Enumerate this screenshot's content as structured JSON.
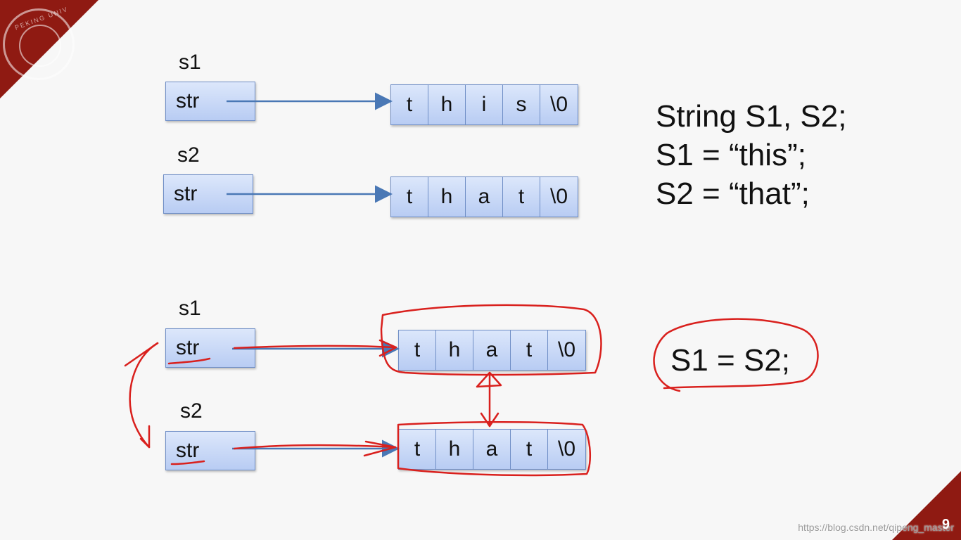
{
  "slide": {
    "page_number": "9",
    "watermark": "https://blog.csdn.net/qipeng_master"
  },
  "top": {
    "s1": {
      "label": "s1",
      "field": "str",
      "chars": [
        "t",
        "h",
        "i",
        "s",
        "\\0"
      ]
    },
    "s2": {
      "label": "s2",
      "field": "str",
      "chars": [
        "t",
        "h",
        "a",
        "t",
        "\\0"
      ]
    }
  },
  "bottom": {
    "s1": {
      "label": "s1",
      "field": "str",
      "chars": [
        "t",
        "h",
        "a",
        "t",
        "\\0"
      ]
    },
    "s2": {
      "label": "s2",
      "field": "str",
      "chars": [
        "t",
        "h",
        "a",
        "t",
        "\\0"
      ]
    }
  },
  "code": {
    "line1": "String S1, S2;",
    "line2": "S1 = “this”;",
    "line3": "S2 = “that”;"
  },
  "assignment": "S1 = S2;",
  "colors": {
    "box_fill": "#c8d8f6",
    "box_border": "#6f8ec6",
    "arrow": "#4a78b5",
    "annotation": "#d9201d",
    "corner": "#8f1a12"
  }
}
